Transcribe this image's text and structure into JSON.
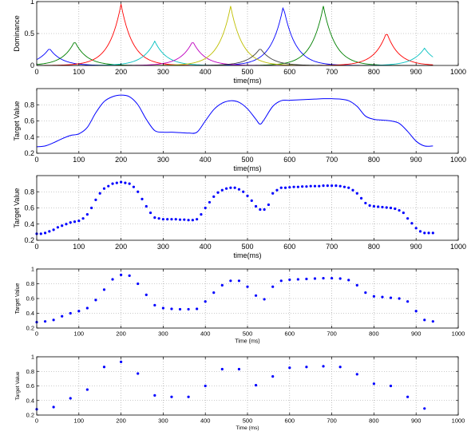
{
  "chart_data": [
    {
      "type": "line",
      "xlabel": "time(ms)",
      "ylabel": "Dominance",
      "xlim": [
        0,
        1000
      ],
      "ylim": [
        0,
        1
      ],
      "xticks": [
        0,
        100,
        200,
        300,
        400,
        500,
        600,
        700,
        800,
        900,
        1000
      ],
      "yticks": [
        0,
        0.5,
        1
      ],
      "ytick_labels": [
        "0",
        "0.5",
        "1"
      ],
      "grid": true,
      "series": [
        {
          "color": "#0000ff",
          "peaks": [
            {
              "x": 30,
              "y": 0.27
            },
            {
              "x": 585,
              "y": 0.93
            }
          ]
        },
        {
          "color": "#008000",
          "peaks": [
            {
              "x": 90,
              "y": 0.38
            },
            {
              "x": 680,
              "y": 0.93
            }
          ]
        },
        {
          "color": "#ff0000",
          "peaks": [
            {
              "x": 200,
              "y": 0.96
            },
            {
              "x": 830,
              "y": 0.52
            }
          ]
        },
        {
          "color": "#00bfbf",
          "peaks": [
            {
              "x": 280,
              "y": 0.38
            },
            {
              "x": 920,
              "y": 0.27
            }
          ]
        },
        {
          "color": "#bf00bf",
          "peaks": [
            {
              "x": 370,
              "y": 0.38
            }
          ]
        },
        {
          "color": "#bfbf00",
          "peaks": [
            {
              "x": 460,
              "y": 0.93
            }
          ]
        },
        {
          "color": "#404040",
          "peaks": [
            {
              "x": 530,
              "y": 0.27
            }
          ]
        }
      ]
    },
    {
      "type": "line",
      "xlabel": "time(ms)",
      "ylabel": "Target Value",
      "xlim": [
        0,
        1000
      ],
      "ylim": [
        0.2,
        1
      ],
      "xticks": [
        0,
        100,
        200,
        300,
        400,
        500,
        600,
        700,
        800,
        900,
        1000
      ],
      "yticks": [
        0.2,
        0.4,
        0.6,
        0.8
      ],
      "ytick_labels": [
        "0.2",
        "0.4",
        "0.6",
        "0.8"
      ],
      "grid": true,
      "color": "#0000ff",
      "x": [
        0,
        20,
        40,
        60,
        80,
        100,
        120,
        140,
        160,
        180,
        200,
        220,
        240,
        260,
        280,
        300,
        320,
        340,
        360,
        380,
        400,
        420,
        440,
        460,
        480,
        500,
        520,
        530,
        540,
        560,
        580,
        600,
        620,
        640,
        660,
        680,
        700,
        720,
        740,
        760,
        780,
        800,
        820,
        840,
        860,
        880,
        900,
        920,
        940
      ],
      "y": [
        0.28,
        0.29,
        0.33,
        0.38,
        0.42,
        0.44,
        0.52,
        0.7,
        0.84,
        0.9,
        0.92,
        0.9,
        0.8,
        0.62,
        0.48,
        0.46,
        0.46,
        0.455,
        0.45,
        0.46,
        0.6,
        0.74,
        0.82,
        0.85,
        0.83,
        0.75,
        0.62,
        0.56,
        0.62,
        0.78,
        0.85,
        0.855,
        0.86,
        0.865,
        0.87,
        0.875,
        0.875,
        0.87,
        0.85,
        0.78,
        0.66,
        0.62,
        0.61,
        0.6,
        0.57,
        0.47,
        0.35,
        0.29,
        0.29
      ]
    },
    {
      "type": "scatter",
      "xlabel": "time(ms)",
      "ylabel": "Target Value",
      "xlim": [
        0,
        1000
      ],
      "ylim": [
        0.2,
        1
      ],
      "xticks": [
        0,
        100,
        200,
        300,
        400,
        500,
        600,
        700,
        800,
        900,
        1000
      ],
      "yticks": [
        0.2,
        0.4,
        0.6,
        0.8
      ],
      "ytick_labels": [
        "0.2",
        "0.4",
        "0.6",
        "0.8"
      ],
      "grid": true,
      "color": "#0000ff",
      "x": [
        0,
        10,
        20,
        30,
        40,
        50,
        60,
        70,
        80,
        90,
        100,
        110,
        120,
        130,
        140,
        150,
        160,
        170,
        180,
        190,
        200,
        210,
        220,
        230,
        240,
        250,
        260,
        270,
        280,
        290,
        300,
        310,
        320,
        330,
        340,
        350,
        360,
        370,
        380,
        390,
        400,
        410,
        420,
        430,
        440,
        450,
        460,
        470,
        480,
        490,
        500,
        510,
        520,
        530,
        540,
        550,
        560,
        570,
        580,
        590,
        600,
        610,
        620,
        630,
        640,
        650,
        660,
        670,
        680,
        690,
        700,
        710,
        720,
        730,
        740,
        750,
        760,
        770,
        780,
        790,
        800,
        810,
        820,
        830,
        840,
        850,
        860,
        870,
        880,
        890,
        900,
        910,
        920,
        930,
        940
      ],
      "y": [
        0.28,
        0.28,
        0.29,
        0.31,
        0.33,
        0.36,
        0.38,
        0.4,
        0.42,
        0.43,
        0.44,
        0.47,
        0.52,
        0.6,
        0.7,
        0.78,
        0.84,
        0.87,
        0.9,
        0.91,
        0.92,
        0.91,
        0.9,
        0.86,
        0.8,
        0.71,
        0.62,
        0.54,
        0.48,
        0.47,
        0.46,
        0.46,
        0.46,
        0.46,
        0.455,
        0.455,
        0.45,
        0.45,
        0.46,
        0.52,
        0.6,
        0.67,
        0.74,
        0.79,
        0.82,
        0.84,
        0.85,
        0.85,
        0.83,
        0.8,
        0.75,
        0.69,
        0.62,
        0.58,
        0.58,
        0.64,
        0.78,
        0.82,
        0.85,
        0.85,
        0.855,
        0.86,
        0.86,
        0.865,
        0.865,
        0.87,
        0.87,
        0.87,
        0.875,
        0.875,
        0.875,
        0.875,
        0.87,
        0.86,
        0.85,
        0.82,
        0.78,
        0.72,
        0.66,
        0.63,
        0.62,
        0.615,
        0.61,
        0.605,
        0.6,
        0.59,
        0.57,
        0.54,
        0.47,
        0.41,
        0.35,
        0.31,
        0.29,
        0.29,
        0.29
      ]
    },
    {
      "type": "scatter",
      "xlabel": "Time (ms)",
      "ylabel": "Target Value",
      "xlim": [
        0,
        1000
      ],
      "ylim": [
        0.2,
        1
      ],
      "xticks": [
        0,
        100,
        200,
        300,
        400,
        500,
        600,
        700,
        800,
        900,
        1000
      ],
      "yticks": [
        0.2,
        0.4,
        0.6,
        0.8,
        1
      ],
      "ytick_labels": [
        "0.2",
        "0.4",
        "0.6",
        "0.8",
        "1"
      ],
      "grid": true,
      "color": "#0000ff",
      "x": [
        0,
        20,
        40,
        60,
        80,
        100,
        120,
        140,
        160,
        180,
        200,
        220,
        240,
        260,
        280,
        300,
        320,
        340,
        360,
        380,
        400,
        420,
        440,
        460,
        480,
        500,
        520,
        540,
        560,
        580,
        600,
        620,
        640,
        660,
        680,
        700,
        720,
        740,
        760,
        780,
        800,
        820,
        840,
        860,
        880,
        900,
        920,
        940
      ],
      "y": [
        0.28,
        0.29,
        0.31,
        0.36,
        0.4,
        0.43,
        0.47,
        0.58,
        0.72,
        0.86,
        0.92,
        0.91,
        0.8,
        0.65,
        0.51,
        0.47,
        0.46,
        0.455,
        0.455,
        0.46,
        0.56,
        0.68,
        0.78,
        0.84,
        0.84,
        0.76,
        0.64,
        0.59,
        0.76,
        0.84,
        0.855,
        0.86,
        0.865,
        0.87,
        0.875,
        0.875,
        0.87,
        0.85,
        0.78,
        0.68,
        0.63,
        0.62,
        0.61,
        0.6,
        0.56,
        0.43,
        0.31,
        0.29
      ]
    },
    {
      "type": "scatter",
      "xlabel": "Time (ms)",
      "ylabel": "Target Value",
      "xlim": [
        0,
        1000
      ],
      "ylim": [
        0.2,
        1
      ],
      "xticks": [
        0,
        100,
        200,
        300,
        400,
        500,
        600,
        700,
        800,
        900,
        1000
      ],
      "yticks": [
        0.2,
        0.4,
        0.6,
        0.8,
        1
      ],
      "ytick_labels": [
        "0.2",
        "0.4",
        "0.6",
        "0.8",
        "1"
      ],
      "grid": true,
      "color": "#0000ff",
      "x": [
        0,
        40,
        80,
        120,
        160,
        200,
        240,
        280,
        320,
        360,
        400,
        440,
        480,
        520,
        560,
        600,
        640,
        680,
        720,
        760,
        800,
        840,
        880,
        920
      ],
      "y": [
        0.28,
        0.31,
        0.43,
        0.55,
        0.86,
        0.93,
        0.77,
        0.47,
        0.45,
        0.45,
        0.6,
        0.83,
        0.83,
        0.61,
        0.73,
        0.85,
        0.86,
        0.87,
        0.86,
        0.76,
        0.63,
        0.6,
        0.45,
        0.29
      ]
    }
  ]
}
